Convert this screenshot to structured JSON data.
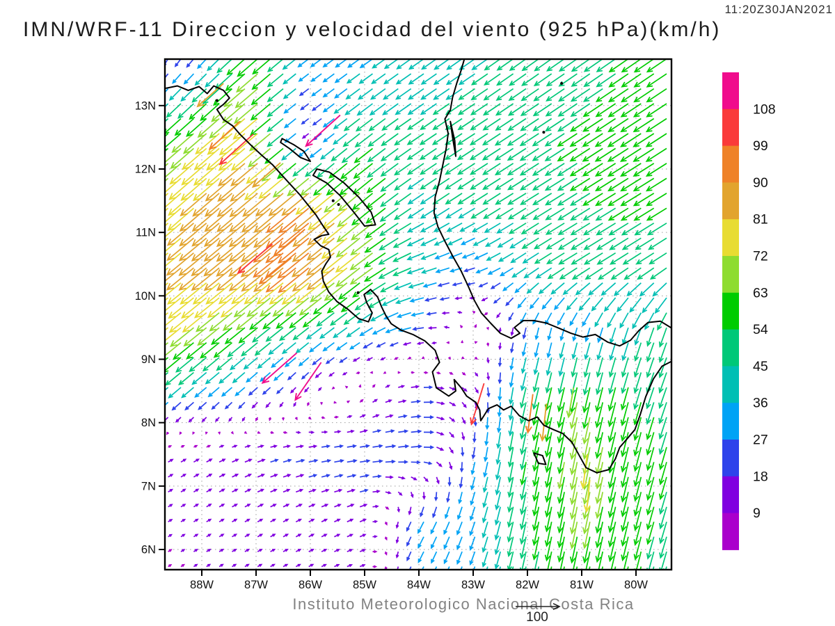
{
  "header": {
    "title": "IMN/WRF-11 Direccion y velocidad del viento (925 hPa)(km/h)",
    "timestamp": "11:20Z30JAN2021"
  },
  "footer": {
    "credit": "Instituto Meteorologico Nacional Costa Rica"
  },
  "colors": {
    "background": "#ffffff",
    "frame": "#000000",
    "grid": "#9e9e9e",
    "coast": "#000000",
    "tick_label": "#111111",
    "colorbar_label": "#111111",
    "reference": "#222222"
  },
  "chart_data": {
    "type": "vector_field",
    "title": "IMN/WRF-11 Direccion y velocidad del viento (925 hPa)(km/h)",
    "timestamp": "11:20Z30JAN2021",
    "variable": "wind direction and speed",
    "level": "925 hPa",
    "units": "km/h",
    "x_axis": {
      "ticks": [
        "88W",
        "87W",
        "86W",
        "85W",
        "84W",
        "83W",
        "82W",
        "81W",
        "80W"
      ],
      "tick_lons": [
        -88,
        -87,
        -86,
        -85,
        -84,
        -83,
        -82,
        -81,
        -80
      ],
      "range_lon": [
        -88.68,
        -79.35
      ]
    },
    "y_axis": {
      "ticks": [
        "13N",
        "12N",
        "11N",
        "10N",
        "9N",
        "8N",
        "7N",
        "6N"
      ],
      "tick_lats": [
        13,
        12,
        11,
        10,
        9,
        8,
        7,
        6
      ],
      "range_lat": [
        5.68,
        13.73
      ]
    },
    "colorbar": {
      "levels": [
        9,
        18,
        27,
        36,
        45,
        54,
        63,
        72,
        81,
        90,
        99,
        108
      ],
      "colors": [
        "#AA00CC",
        "#8000E0",
        "#2E43EB",
        "#00A3F5",
        "#00BFB4",
        "#00C878",
        "#00CC00",
        "#8EDC30",
        "#E8DC32",
        "#E2A42E",
        "#EF8228",
        "#FA3A3A",
        "#F00C8C"
      ]
    },
    "reference_vector": {
      "value": 100,
      "label": "100"
    },
    "wind_grid": {
      "lats": [
        13.7,
        12.5,
        11.5,
        10.5,
        9.5,
        8.5,
        7.5,
        6.5,
        5.7
      ],
      "lons": [
        -89,
        -88,
        -87,
        -86,
        -85,
        -84,
        -83,
        -82,
        -81,
        -80,
        -79.5
      ],
      "u": [
        [
          -6,
          -18,
          -48,
          -24,
          -28,
          -34,
          -36,
          -38,
          -42,
          -45,
          -46
        ],
        [
          -40,
          -55,
          -62,
          -12,
          -42,
          -38,
          -40,
          -43,
          -46,
          -48,
          -48
        ],
        [
          -52,
          -62,
          -66,
          -70,
          -50,
          -36,
          -39,
          -42,
          -45,
          -47,
          -47
        ],
        [
          -60,
          -65,
          -68,
          -74,
          -56,
          -40,
          -26,
          -34,
          -43,
          -41,
          -39
        ],
        [
          -60,
          -54,
          -44,
          -36,
          -30,
          -28,
          3,
          -6,
          -9,
          -13,
          -16
        ],
        [
          -29,
          -26,
          -19,
          -7,
          4,
          23,
          8,
          -12,
          -14,
          -15,
          -17
        ],
        [
          10,
          12,
          17,
          21,
          24,
          25,
          -6,
          -10,
          -13,
          -14,
          -15
        ],
        [
          8,
          10,
          11,
          12,
          14,
          -14,
          -11,
          -11,
          -13,
          -14,
          -15
        ],
        [
          6,
          8,
          9,
          10,
          11,
          -12,
          -11,
          -11,
          -13,
          -13,
          -14
        ]
      ],
      "v": [
        [
          -14,
          -20,
          -42,
          -18,
          -20,
          -24,
          -25,
          -27,
          -29,
          -31,
          -31
        ],
        [
          -34,
          -48,
          -52,
          -9,
          -33,
          -26,
          -26,
          -28,
          -30,
          -31,
          -31
        ],
        [
          -46,
          -54,
          -56,
          -58,
          -42,
          -25,
          -25,
          -26,
          -28,
          -29,
          -29
        ],
        [
          -50,
          -53,
          -55,
          -60,
          -44,
          -14,
          -8,
          -22,
          -26,
          -26,
          -25
        ],
        [
          -48,
          -44,
          -36,
          -28,
          -21,
          -5,
          7,
          -26,
          -31,
          -39,
          -45
        ],
        [
          -25,
          -22,
          -17,
          -9,
          8,
          2,
          -12,
          -50,
          -62,
          -52,
          -49
        ],
        [
          6,
          7,
          6,
          4,
          3,
          2,
          -27,
          -54,
          -66,
          -58,
          -53
        ],
        [
          5,
          6,
          6,
          6,
          6,
          -26,
          -31,
          -53,
          -64,
          -56,
          -51
        ],
        [
          4,
          5,
          5,
          5,
          4,
          -24,
          -29,
          -49,
          -60,
          -53,
          -49
        ]
      ]
    },
    "jet_streaks": [
      {
        "lon": -87.05,
        "lat": 12.55,
        "u": -80,
        "v": -72
      },
      {
        "lon": -85.45,
        "lat": 12.85,
        "u": -82,
        "v": -74
      },
      {
        "lon": -87.3,
        "lat": 12.75,
        "u": -72,
        "v": -66
      },
      {
        "lon": -87.6,
        "lat": 13.35,
        "u": -62,
        "v": -55
      },
      {
        "lon": -86.55,
        "lat": 12.1,
        "u": -66,
        "v": -58
      },
      {
        "lon": -86.7,
        "lat": 10.82,
        "u": -82,
        "v": -70
      },
      {
        "lon": -86.35,
        "lat": 10.6,
        "u": -76,
        "v": -62
      },
      {
        "lon": -86.1,
        "lat": 11.05,
        "u": -74,
        "v": -64
      },
      {
        "lon": -86.25,
        "lat": 9.1,
        "u": -82,
        "v": -72
      },
      {
        "lon": -85.8,
        "lat": 8.95,
        "u": -62,
        "v": -90
      },
      {
        "lon": -82.8,
        "lat": 8.62,
        "u": -30,
        "v": -98
      },
      {
        "lon": -81.9,
        "lat": 8.45,
        "u": -12,
        "v": -92
      },
      {
        "lon": -81.65,
        "lat": 8.3,
        "u": -10,
        "v": -88
      },
      {
        "lon": -81.15,
        "lat": 8.55,
        "u": -12,
        "v": -70
      },
      {
        "lon": -80.9,
        "lat": 7.5,
        "u": -10,
        "v": -80
      },
      {
        "lon": -80.85,
        "lat": 7.1,
        "u": -8,
        "v": -76
      }
    ],
    "coastlines": [
      [
        [
          -88.68,
          13.27
        ],
        [
          -88.45,
          13.31
        ],
        [
          -88.25,
          13.24
        ],
        [
          -88.05,
          13.3
        ],
        [
          -87.9,
          13.19
        ],
        [
          -87.78,
          13.31
        ],
        [
          -87.6,
          13.24
        ],
        [
          -87.49,
          13.12
        ],
        [
          -87.6,
          13.02
        ],
        [
          -87.72,
          12.94
        ],
        [
          -87.6,
          12.78
        ],
        [
          -87.43,
          12.68
        ],
        [
          -87.3,
          12.55
        ],
        [
          -87.1,
          12.38
        ],
        [
          -86.9,
          12.22
        ],
        [
          -86.7,
          12.07
        ],
        [
          -86.52,
          11.9
        ],
        [
          -86.35,
          11.74
        ],
        [
          -86.2,
          11.6
        ],
        [
          -86.05,
          11.44
        ],
        [
          -85.9,
          11.28
        ],
        [
          -85.78,
          11.12
        ],
        [
          -85.66,
          10.97
        ],
        [
          -85.79,
          10.95
        ],
        [
          -85.93,
          10.89
        ],
        [
          -85.81,
          10.79
        ],
        [
          -85.66,
          10.73
        ],
        [
          -85.63,
          10.61
        ],
        [
          -85.71,
          10.51
        ],
        [
          -85.79,
          10.39
        ],
        [
          -85.76,
          10.23
        ],
        [
          -85.66,
          10.06
        ],
        [
          -85.51,
          9.91
        ],
        [
          -85.31,
          9.79
        ],
        [
          -85.11,
          9.64
        ],
        [
          -84.93,
          9.59
        ],
        [
          -84.86,
          9.73
        ],
        [
          -84.96,
          9.89
        ],
        [
          -85.01,
          10.02
        ],
        [
          -84.89,
          10.1
        ],
        [
          -84.76,
          9.98
        ],
        [
          -84.69,
          9.83
        ],
        [
          -84.61,
          9.69
        ],
        [
          -84.51,
          9.56
        ],
        [
          -84.33,
          9.46
        ],
        [
          -84.11,
          9.39
        ],
        [
          -83.89,
          9.29
        ],
        [
          -83.7,
          9.14
        ],
        [
          -83.62,
          8.95
        ],
        [
          -83.75,
          8.8
        ],
        [
          -83.68,
          8.55
        ],
        [
          -83.45,
          8.42
        ],
        [
          -83.32,
          8.5
        ],
        [
          -83.35,
          8.68
        ],
        [
          -83.22,
          8.55
        ],
        [
          -83.12,
          8.42
        ],
        [
          -82.95,
          8.32
        ],
        [
          -82.88,
          8.2
        ],
        [
          -82.86,
          8.03
        ],
        [
          -82.72,
          8.22
        ],
        [
          -82.56,
          8.28
        ],
        [
          -82.44,
          8.2
        ],
        [
          -82.3,
          8.26
        ],
        [
          -82.15,
          8.11
        ],
        [
          -81.98,
          8.03
        ],
        [
          -81.82,
          8.09
        ],
        [
          -81.7,
          7.96
        ],
        [
          -81.52,
          7.89
        ],
        [
          -81.35,
          7.83
        ],
        [
          -81.18,
          7.69
        ],
        [
          -81.05,
          7.49
        ],
        [
          -80.92,
          7.29
        ],
        [
          -80.72,
          7.21
        ],
        [
          -80.5,
          7.26
        ],
        [
          -80.38,
          7.43
        ],
        [
          -80.3,
          7.61
        ],
        [
          -80.18,
          7.73
        ],
        [
          -80.02,
          7.89
        ],
        [
          -79.92,
          8.13
        ],
        [
          -79.82,
          8.41
        ],
        [
          -79.68,
          8.69
        ],
        [
          -79.52,
          8.89
        ],
        [
          -79.36,
          8.96
        ]
      ],
      [
        [
          -79.36,
          9.5
        ],
        [
          -79.55,
          9.6
        ],
        [
          -79.78,
          9.58
        ],
        [
          -79.95,
          9.45
        ],
        [
          -80.1,
          9.3
        ],
        [
          -80.3,
          9.21
        ],
        [
          -80.52,
          9.27
        ],
        [
          -80.75,
          9.39
        ],
        [
          -80.98,
          9.35
        ],
        [
          -81.2,
          9.41
        ],
        [
          -81.42,
          9.49
        ],
        [
          -81.65,
          9.57
        ],
        [
          -81.88,
          9.61
        ],
        [
          -82.08,
          9.61
        ],
        [
          -82.24,
          9.5
        ],
        [
          -82.14,
          9.41
        ],
        [
          -82.3,
          9.33
        ],
        [
          -82.5,
          9.41
        ],
        [
          -82.68,
          9.57
        ],
        [
          -82.85,
          9.73
        ],
        [
          -82.98,
          9.93
        ],
        [
          -83.08,
          10.13
        ],
        [
          -83.22,
          10.39
        ],
        [
          -83.38,
          10.63
        ],
        [
          -83.52,
          10.86
        ],
        [
          -83.65,
          11.09
        ],
        [
          -83.72,
          11.31
        ],
        [
          -83.7,
          11.56
        ],
        [
          -83.62,
          11.81
        ],
        [
          -83.56,
          12.06
        ],
        [
          -83.5,
          12.31
        ],
        [
          -83.46,
          12.56
        ],
        [
          -83.52,
          12.79
        ],
        [
          -83.42,
          12.93
        ],
        [
          -83.38,
          13.13
        ],
        [
          -83.3,
          13.36
        ],
        [
          -83.22,
          13.56
        ],
        [
          -83.16,
          13.74
        ]
      ]
    ],
    "lakes": [
      [
        [
          -85.95,
          11.9
        ],
        [
          -85.7,
          11.78
        ],
        [
          -85.45,
          11.58
        ],
        [
          -85.2,
          11.32
        ],
        [
          -85.0,
          11.1
        ],
        [
          -84.8,
          11.12
        ],
        [
          -84.88,
          11.32
        ],
        [
          -85.1,
          11.55
        ],
        [
          -85.38,
          11.78
        ],
        [
          -85.65,
          11.95
        ],
        [
          -85.88,
          12.0
        ],
        [
          -85.95,
          11.9
        ]
      ],
      [
        [
          -86.52,
          12.48
        ],
        [
          -86.3,
          12.38
        ],
        [
          -86.12,
          12.28
        ],
        [
          -86.0,
          12.12
        ],
        [
          -86.18,
          12.18
        ],
        [
          -86.38,
          12.32
        ],
        [
          -86.55,
          12.42
        ],
        [
          -86.52,
          12.48
        ]
      ],
      [
        [
          -83.42,
          12.75
        ],
        [
          -83.34,
          12.45
        ],
        [
          -83.32,
          12.2
        ],
        [
          -83.38,
          12.5
        ],
        [
          -83.42,
          12.75
        ]
      ],
      [
        [
          -81.88,
          7.52
        ],
        [
          -81.72,
          7.48
        ],
        [
          -81.66,
          7.34
        ],
        [
          -81.8,
          7.36
        ],
        [
          -81.88,
          7.52
        ]
      ]
    ],
    "islands": [
      [
        -81.7,
        12.58
      ],
      [
        -81.37,
        13.35
      ],
      [
        -85.58,
        11.5
      ],
      [
        -85.48,
        11.44
      ],
      [
        -85.12,
        10.05
      ],
      [
        -87.72,
        13.08
      ]
    ]
  }
}
